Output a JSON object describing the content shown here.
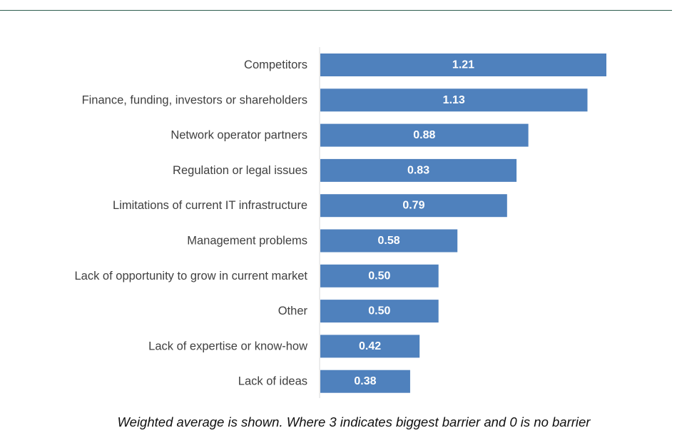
{
  "chart_data": {
    "type": "bar",
    "orientation": "horizontal",
    "categories": [
      "Competitors",
      "Finance, funding, investors or shareholders",
      "Network operator partners",
      "Regulation or legal issues",
      "Limitations of current IT infrastructure",
      "Management problems",
      "Lack of opportunity to grow in current market",
      "Other",
      "Lack of expertise or know-how",
      "Lack of ideas"
    ],
    "values": [
      1.21,
      1.13,
      0.88,
      0.83,
      0.79,
      0.58,
      0.5,
      0.5,
      0.42,
      0.38
    ],
    "value_labels": [
      "1.21",
      "1.13",
      "0.88",
      "0.83",
      "0.79",
      "0.58",
      "0.50",
      "0.50",
      "0.42",
      "0.38"
    ],
    "xlim": [
      0,
      1.21
    ],
    "grid": false,
    "legend": "none",
    "bar_color": "#4f81bd",
    "axis_color": "#d9d9d9",
    "footnote": "Weighted average is shown. Where 3 indicates biggest barrier and 0 is no barrier"
  }
}
